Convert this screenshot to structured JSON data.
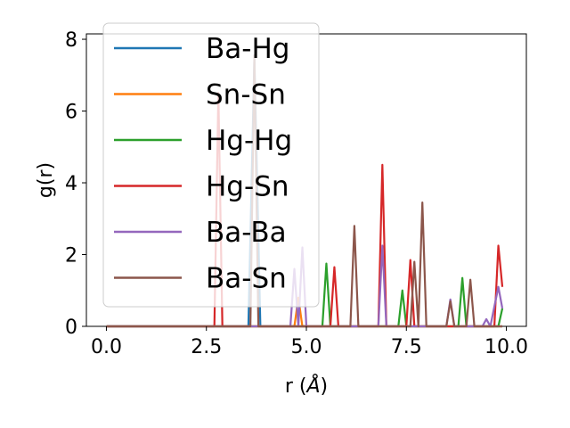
{
  "chart_data": {
    "type": "line",
    "xlabel_main": "r (",
    "xlabel_unit": "Å",
    "xlabel_close": ")",
    "ylabel": "g(r)",
    "xlim": [
      -0.5,
      10.5
    ],
    "ylim": [
      0,
      8.15
    ],
    "x_ticks": [
      0.0,
      2.5,
      5.0,
      7.5,
      10.0
    ],
    "x_tick_labels": [
      "0.0",
      "2.5",
      "5.0",
      "7.5",
      "10.0"
    ],
    "y_ticks": [
      0,
      2,
      4,
      6,
      8
    ],
    "y_tick_labels": [
      "0",
      "2",
      "4",
      "6",
      "8"
    ],
    "grid": false,
    "legend_position": "upper-left",
    "series": [
      {
        "name": "Ba-Hg",
        "color": "#1f77b4",
        "points": [
          [
            0,
            0
          ],
          [
            3.55,
            0
          ],
          [
            3.7,
            7.5
          ],
          [
            3.85,
            0
          ],
          [
            9.9,
            0
          ]
        ]
      },
      {
        "name": "Sn-Sn",
        "color": "#ff7f0e",
        "points": [
          [
            0,
            0
          ],
          [
            4.7,
            0
          ],
          [
            4.8,
            0.8
          ],
          [
            4.9,
            0
          ],
          [
            9.9,
            0
          ]
        ]
      },
      {
        "name": "Hg-Hg",
        "color": "#2ca02c",
        "points": [
          [
            0,
            0
          ],
          [
            5.4,
            0
          ],
          [
            5.5,
            1.75
          ],
          [
            5.6,
            0
          ],
          [
            7.3,
            0
          ],
          [
            7.4,
            1.0
          ],
          [
            7.5,
            0
          ],
          [
            8.8,
            0
          ],
          [
            8.9,
            1.35
          ],
          [
            9.0,
            0
          ],
          [
            9.8,
            0
          ],
          [
            9.9,
            0.5
          ]
        ]
      },
      {
        "name": "Hg-Sn",
        "color": "#d62728",
        "points": [
          [
            0,
            0
          ],
          [
            2.7,
            0
          ],
          [
            2.8,
            6.5
          ],
          [
            2.9,
            0
          ],
          [
            5.6,
            0
          ],
          [
            5.7,
            1.65
          ],
          [
            5.8,
            0
          ],
          [
            6.8,
            0
          ],
          [
            6.9,
            4.5
          ],
          [
            7.0,
            0
          ],
          [
            7.5,
            0
          ],
          [
            7.6,
            1.85
          ],
          [
            7.7,
            0
          ],
          [
            9.7,
            0
          ],
          [
            9.8,
            2.25
          ],
          [
            9.9,
            1.1
          ]
        ]
      },
      {
        "name": "Ba-Ba",
        "color": "#9467bd",
        "points": [
          [
            0,
            0
          ],
          [
            4.6,
            0
          ],
          [
            4.7,
            1.6
          ],
          [
            4.8,
            0
          ],
          [
            4.9,
            2.2
          ],
          [
            5.0,
            0
          ],
          [
            6.8,
            0
          ],
          [
            6.9,
            2.25
          ],
          [
            7.0,
            0
          ],
          [
            8.5,
            0
          ],
          [
            8.6,
            0.75
          ],
          [
            8.7,
            0
          ],
          [
            9.4,
            0
          ],
          [
            9.5,
            0.2
          ],
          [
            9.6,
            0
          ],
          [
            9.8,
            1.1
          ],
          [
            9.9,
            0.5
          ]
        ]
      },
      {
        "name": "Ba-Sn",
        "color": "#8c564b",
        "points": [
          [
            0,
            0
          ],
          [
            3.6,
            0
          ],
          [
            3.7,
            7.55
          ],
          [
            3.8,
            0
          ],
          [
            6.1,
            0
          ],
          [
            6.2,
            2.8
          ],
          [
            6.3,
            0
          ],
          [
            7.6,
            0
          ],
          [
            7.7,
            1.8
          ],
          [
            7.8,
            0
          ],
          [
            7.8,
            0
          ],
          [
            7.9,
            3.45
          ],
          [
            8.0,
            0
          ],
          [
            8.5,
            0
          ],
          [
            8.6,
            0.7
          ],
          [
            8.7,
            0
          ],
          [
            9.0,
            0
          ],
          [
            9.1,
            1.3
          ],
          [
            9.2,
            0
          ],
          [
            9.9,
            0
          ]
        ]
      }
    ]
  }
}
